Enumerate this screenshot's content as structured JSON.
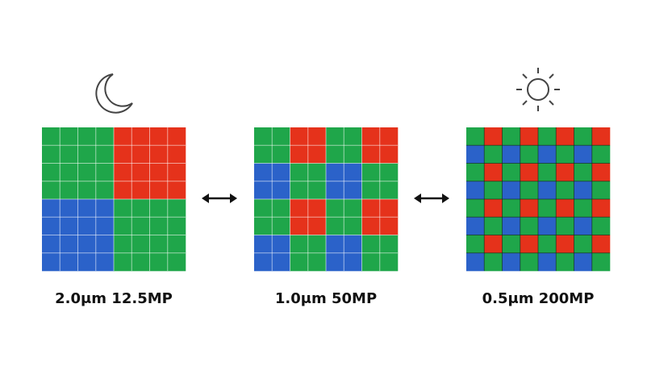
{
  "panels": [
    {
      "label": "2.0μm 12.5MP"
    },
    {
      "label": "1.0μm 50MP"
    },
    {
      "label": "0.5μm 200MP"
    }
  ]
}
